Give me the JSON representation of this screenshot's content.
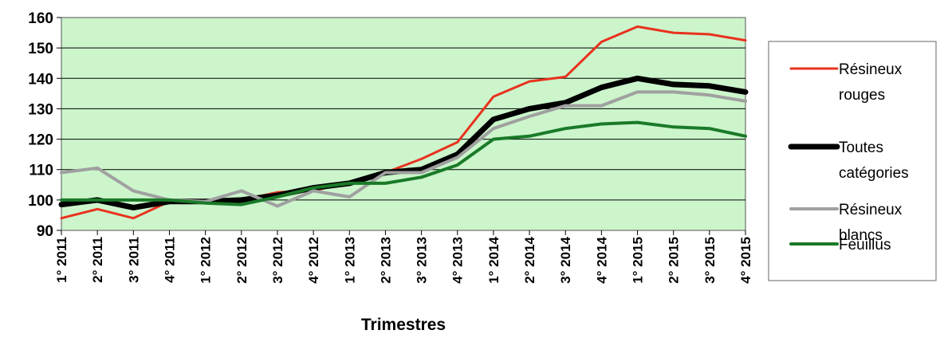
{
  "chart_data": {
    "type": "line",
    "xlabel": "Trimestres",
    "ylabel": "",
    "ylim": [
      90,
      160
    ],
    "yticks": [
      90,
      100,
      110,
      120,
      130,
      140,
      150,
      160
    ],
    "grid": "horizontal",
    "plot_background": "#ccf5cc",
    "legend_position": "right",
    "categories": [
      "1° 2011",
      "2° 2011",
      "3° 2011",
      "4° 2011",
      "1° 2012",
      "2° 2012",
      "3° 2012",
      "4° 2012",
      "1° 2013",
      "2° 2013",
      "3° 2013",
      "4° 2013",
      "1° 2014",
      "2° 2014",
      "3° 2014",
      "4° 2014",
      "1° 2015",
      "2° 2015",
      "3° 2015",
      "4° 2015"
    ],
    "series": [
      {
        "name": "Résineux rouges",
        "legend_lines": [
          "Résineux",
          "rouges"
        ],
        "color": "#e8321e",
        "width": 3,
        "values": [
          94,
          97,
          94,
          99.5,
          99.5,
          100,
          102.5,
          103,
          106,
          109,
          113.5,
          119,
          134,
          139,
          140.5,
          152,
          157,
          155,
          154.5,
          152.5
        ]
      },
      {
        "name": "Toutes catégories",
        "legend_lines": [
          "Toutes",
          "catégories"
        ],
        "color": "#000000",
        "width": 7,
        "values": [
          98.5,
          100,
          97.5,
          99.5,
          99.5,
          100,
          101.5,
          104,
          105.5,
          109,
          110,
          115,
          126.5,
          130,
          132,
          137,
          140,
          138,
          137.5,
          135.5
        ]
      },
      {
        "name": "Résineux blancs",
        "legend_lines": [
          "Résineux",
          "blancs"
        ],
        "color": "#a0a0a0",
        "width": 4,
        "values": [
          109,
          110.5,
          103,
          100,
          99.5,
          103,
          98,
          103,
          101,
          109,
          109,
          114,
          123.5,
          127.5,
          131,
          131,
          135.5,
          135.5,
          134.5,
          132.5
        ]
      },
      {
        "name": "Feuillus",
        "legend_lines": [
          "Feuillus"
        ],
        "color": "#1a7a28",
        "width": 4,
        "values": [
          100,
          100,
          100,
          100,
          99,
          98.5,
          101,
          104,
          105.5,
          105.5,
          107.5,
          111.5,
          120,
          121,
          123.5,
          125,
          125.5,
          124,
          123.5,
          121
        ]
      }
    ]
  }
}
